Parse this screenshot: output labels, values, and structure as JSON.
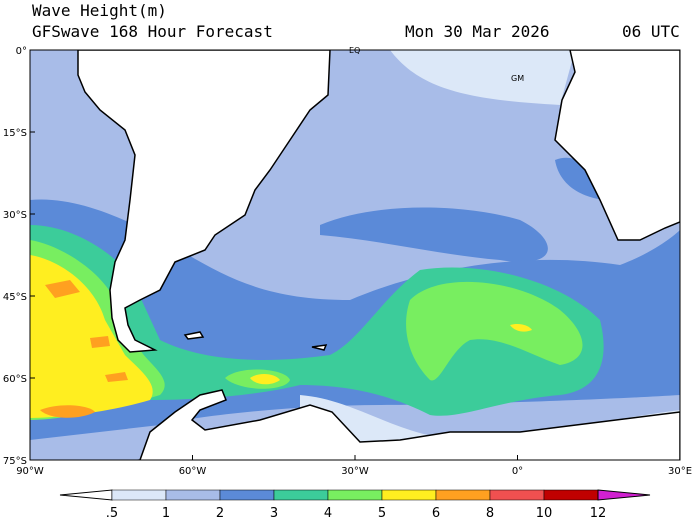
{
  "header": {
    "title": "Wave Height(m)",
    "subtitle": "GFSwave 168 Hour Forecast",
    "date": "Mon 30 Mar 2026",
    "time": "06 UTC"
  },
  "map": {
    "labels": [
      "EQ",
      "GM"
    ],
    "lat_labels": [
      "0°",
      "15°S",
      "30°S",
      "45°S",
      "60°S",
      "75°S"
    ],
    "lon_labels": [
      "90°W",
      "60°W",
      "30°W",
      "0°",
      "30°E"
    ]
  },
  "colorbar": {
    "labels": [
      ".5",
      "1",
      "2",
      "3",
      "4",
      "5",
      "6",
      "8",
      "10",
      "12"
    ]
  }
}
